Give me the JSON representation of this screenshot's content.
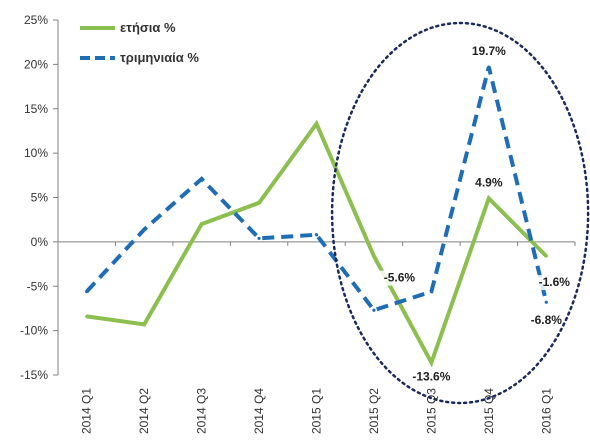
{
  "chart_data": {
    "type": "line",
    "categories": [
      "2014 Q1",
      "2014 Q2",
      "2014 Q3",
      "2014 Q4",
      "2015 Q1",
      "2015 Q2",
      "2015 Q3",
      "2015 Q4",
      "2016 Q1"
    ],
    "series": [
      {
        "name": "ετήσια %",
        "color": "#8CBF4F",
        "style": "solid",
        "values": [
          -8.4,
          -9.3,
          2.0,
          4.4,
          13.3,
          -1.6,
          -13.6,
          4.9,
          -1.6
        ],
        "data_labels": [
          "",
          "",
          "",
          "",
          "",
          "",
          "-13.6%",
          "4.9%",
          "-1.6%"
        ]
      },
      {
        "name": "τριμηνιαία %",
        "color": "#1F6DB5",
        "style": "dashed",
        "values": [
          -5.6,
          1.4,
          7.1,
          0.4,
          0.8,
          -7.7,
          -5.6,
          19.7,
          -6.8
        ],
        "data_labels": [
          "",
          "",
          "",
          "",
          "",
          "",
          "-5.6%",
          "19.7%",
          "-6.8%"
        ]
      }
    ],
    "y_ticks": [
      "25%",
      "20%",
      "15%",
      "10%",
      "5%",
      "0%",
      "-5%",
      "-10%",
      "-15%"
    ],
    "ylim": [
      -15,
      25
    ],
    "y_unit": "%",
    "title": "",
    "xlabel": "",
    "ylabel": "",
    "legend_position": "top-left",
    "grid": false,
    "annotation": {
      "shape": "dotted-ellipse",
      "color": "#1a2a5a",
      "covers_categories": [
        "2015 Q2",
        "2015 Q3",
        "2015 Q4",
        "2016 Q1"
      ]
    }
  }
}
